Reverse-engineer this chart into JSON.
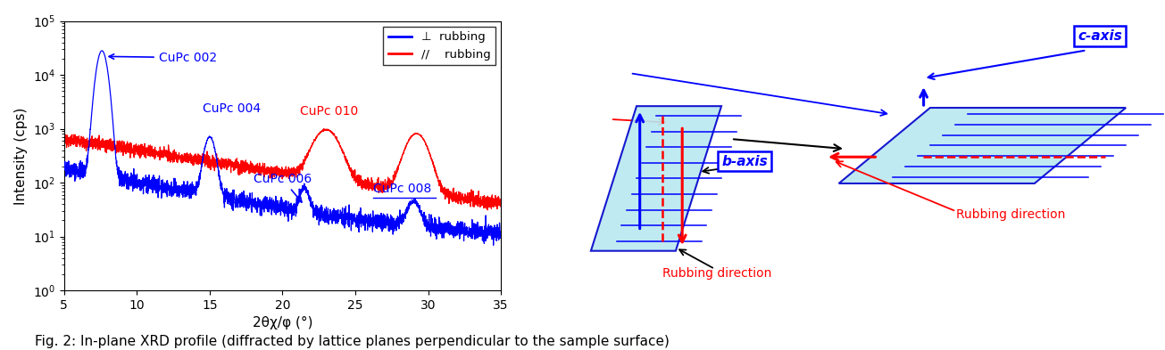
{
  "title": "",
  "xlabel": "2θχ/φ (°)",
  "ylabel": "Intensity (cps)",
  "xlim": [
    5,
    35
  ],
  "blue_color": "#0000FF",
  "red_color": "#FF0000",
  "fig_caption": "Fig. 2: In-plane XRD profile (diffracted by lattice planes perpendicular to the sample surface)",
  "legend_perp": "⊥  rubbing",
  "legend_para": "//    rubbing",
  "cyan_fill": "#B8E8F0",
  "box_edge_blue": "#0000CC",
  "baxis_label": "b-axis",
  "caxis_label": "c-axis"
}
